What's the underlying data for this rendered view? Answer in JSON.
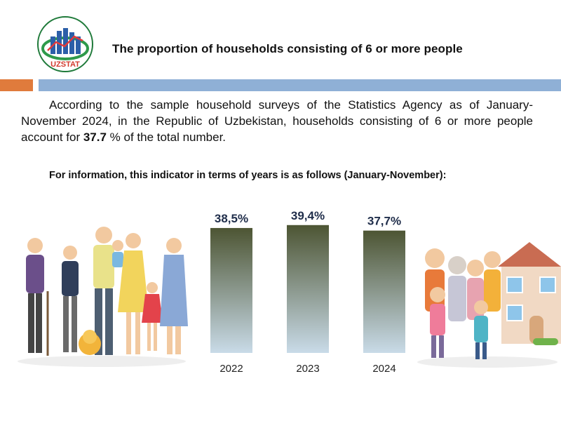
{
  "header": {
    "logo_text": "UZSTAT",
    "title": "The proportion of households consisting of 6 or more people"
  },
  "body": {
    "paragraph_before": "According to the sample household surveys of the Statistics Agency as of January-November 2024, in the Republic of Uzbekistan, households consisting of 6 or more people account for ",
    "paragraph_value": "37.7",
    "paragraph_after": " % of the total number.",
    "info_line": "For information, this indicator in terms of years is as follows (January-November):"
  },
  "colors": {
    "accent_orange": "#e07b3c",
    "accent_blue": "#8fb0d6",
    "bar_top": "#4d5533",
    "bar_bottom": "#c9dbe8"
  },
  "chart_data": {
    "type": "bar",
    "categories": [
      "2022",
      "2023",
      "2024"
    ],
    "values": [
      38.5,
      39.4,
      37.7
    ],
    "value_labels": [
      "38,5%",
      "39,4%",
      "37,7%"
    ],
    "title": "",
    "xlabel": "",
    "ylabel": "",
    "grid": false
  }
}
